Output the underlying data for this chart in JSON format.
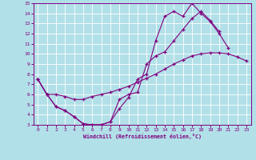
{
  "xlabel": "Windchill (Refroidissement éolien,°C)",
  "bg_color": "#b2e0e8",
  "line_color": "#800080",
  "grid_color": "#ffffff",
  "xlim": [
    -0.5,
    23.5
  ],
  "ylim": [
    3,
    15
  ],
  "xticks": [
    0,
    1,
    2,
    3,
    4,
    5,
    6,
    7,
    8,
    9,
    10,
    11,
    12,
    13,
    14,
    15,
    16,
    17,
    18,
    19,
    20,
    21,
    22,
    23
  ],
  "yticks": [
    3,
    4,
    5,
    6,
    7,
    8,
    9,
    10,
    11,
    12,
    13,
    14,
    15
  ],
  "curve1_x": [
    0,
    1,
    2,
    3,
    4,
    5,
    6,
    7,
    8,
    9,
    10,
    11,
    12,
    13,
    14,
    15,
    16,
    17,
    18,
    19,
    20,
    21,
    22,
    23
  ],
  "curve1_y": [
    7.5,
    6.0,
    4.8,
    4.4,
    3.8,
    3.1,
    3.0,
    3.0,
    3.3,
    4.6,
    5.7,
    7.5,
    8.0,
    11.3,
    13.7,
    14.2,
    13.7,
    15.0,
    14.0,
    13.2,
    12.0,
    10.6,
    null,
    null
  ],
  "curve2_x": [
    0,
    1,
    2,
    3,
    4,
    5,
    6,
    7,
    8,
    9,
    10,
    11,
    12,
    13,
    14,
    15,
    16,
    17,
    18,
    19,
    20,
    21,
    22,
    23
  ],
  "curve2_y": [
    7.5,
    6.0,
    6.0,
    5.8,
    5.5,
    5.5,
    5.8,
    6.0,
    6.2,
    6.5,
    6.8,
    7.2,
    7.6,
    8.0,
    8.5,
    9.0,
    9.4,
    9.8,
    10.0,
    10.1,
    10.1,
    10.0,
    9.7,
    9.3
  ],
  "curve3_x": [
    0,
    1,
    2,
    3,
    4,
    5,
    6,
    7,
    8,
    9,
    10,
    11,
    12,
    13,
    14,
    15,
    16,
    17,
    18,
    19,
    20,
    21,
    22,
    23
  ],
  "curve3_y": [
    7.5,
    6.0,
    4.8,
    4.4,
    3.8,
    3.1,
    3.0,
    3.0,
    3.3,
    5.5,
    6.0,
    6.2,
    9.0,
    9.8,
    10.2,
    11.3,
    12.4,
    13.5,
    14.2,
    13.3,
    12.2,
    null,
    null,
    null
  ]
}
